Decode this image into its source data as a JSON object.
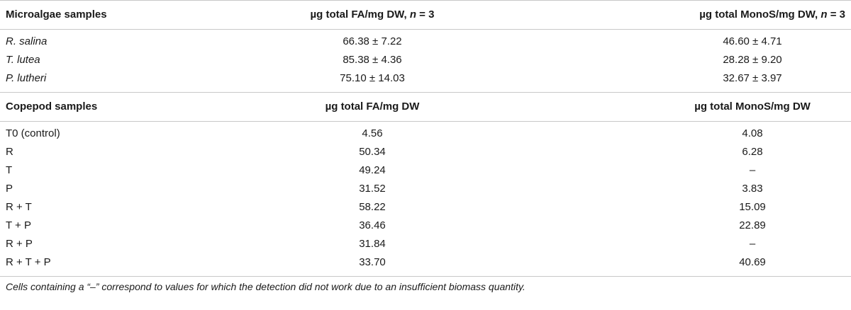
{
  "microalgae": {
    "headers": {
      "samples": "Microalgae samples",
      "fa": "µg total FA/mg DW, ",
      "fa_n": "n",
      "fa_tail": " = 3",
      "monos": "µg total MonoS/mg DW, ",
      "monos_n": "n",
      "monos_tail": " = 3"
    },
    "rows": [
      {
        "sample": "R. salina",
        "fa": "66.38 ± 7.22",
        "monos": "46.60 ± 4.71"
      },
      {
        "sample": "T. lutea",
        "fa": "85.38 ± 4.36",
        "monos": "28.28 ± 9.20"
      },
      {
        "sample": "P. lutheri",
        "fa": "75.10 ± 14.03",
        "monos": "32.67 ± 3.97"
      }
    ]
  },
  "copepod": {
    "headers": {
      "samples": "Copepod samples",
      "fa": "µg total FA/mg DW",
      "monos": "µg total MonoS/mg DW"
    },
    "rows": [
      {
        "sample": "T0 (control)",
        "fa": "4.56",
        "monos": "4.08"
      },
      {
        "sample": "R",
        "fa": "50.34",
        "monos": "6.28"
      },
      {
        "sample": "T",
        "fa": "49.24",
        "monos": "–"
      },
      {
        "sample": "P",
        "fa": "31.52",
        "monos": "3.83"
      },
      {
        "sample": "R + T",
        "fa": "58.22",
        "monos": "15.09"
      },
      {
        "sample": "T + P",
        "fa": "36.46",
        "monos": "22.89"
      },
      {
        "sample": "R + P",
        "fa": "31.84",
        "monos": "–"
      },
      {
        "sample": "R + T + P",
        "fa": "33.70",
        "monos": "40.69"
      }
    ]
  },
  "footnote": "Cells containing a “–” correspond to values for which the detection did not work due to an insufficient biomass quantity."
}
